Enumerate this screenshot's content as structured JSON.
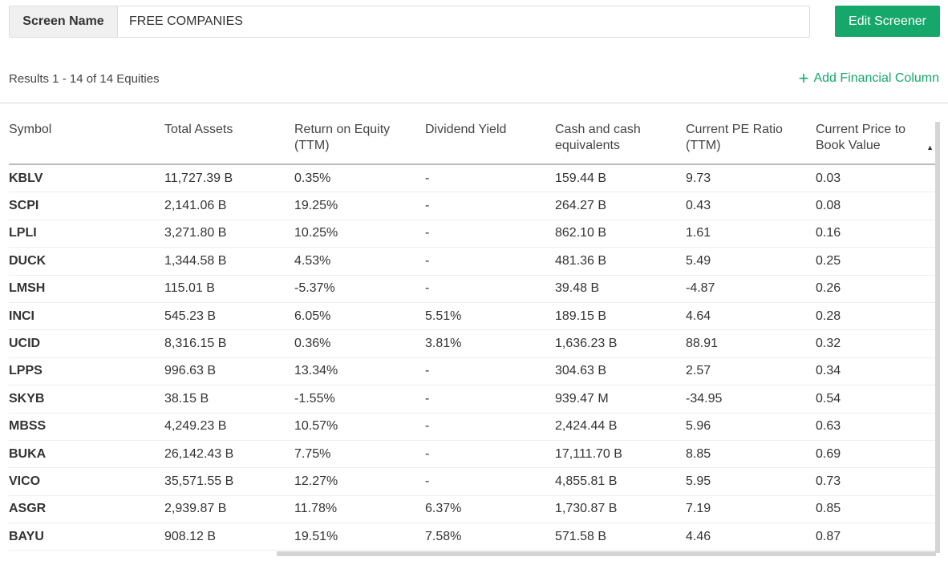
{
  "screen": {
    "label": "Screen Name",
    "value": "FREE COMPANIES",
    "edit_label": "Edit Screener"
  },
  "results_text": "Results 1 - 14 of 14 Equities",
  "add_column": {
    "icon": "plus-icon",
    "label": "Add Financial Column"
  },
  "columns": [
    "Symbol",
    "Total Assets",
    "Return on Equity (TTM)",
    "Dividend Yield",
    "Cash and cash equivalents",
    "Current PE Ratio (TTM)",
    "Current Price to Book Value"
  ],
  "sort": {
    "column": "Current Price to Book Value",
    "direction": "ascending"
  },
  "rows": [
    [
      "KBLV",
      "11,727.39 B",
      "0.35%",
      "-",
      "159.44 B",
      "9.73",
      "0.03"
    ],
    [
      "SCPI",
      "2,141.06 B",
      "19.25%",
      "-",
      "264.27 B",
      "0.43",
      "0.08"
    ],
    [
      "LPLI",
      "3,271.80 B",
      "10.25%",
      "-",
      "862.10 B",
      "1.61",
      "0.16"
    ],
    [
      "DUCK",
      "1,344.58 B",
      "4.53%",
      "-",
      "481.36 B",
      "5.49",
      "0.25"
    ],
    [
      "LMSH",
      "115.01 B",
      "-5.37%",
      "-",
      "39.48 B",
      "-4.87",
      "0.26"
    ],
    [
      "INCI",
      "545.23 B",
      "6.05%",
      "5.51%",
      "189.15 B",
      "4.64",
      "0.28"
    ],
    [
      "UCID",
      "8,316.15 B",
      "0.36%",
      "3.81%",
      "1,636.23 B",
      "88.91",
      "0.32"
    ],
    [
      "LPPS",
      "996.63 B",
      "13.34%",
      "-",
      "304.63 B",
      "2.57",
      "0.34"
    ],
    [
      "SKYB",
      "38.15 B",
      "-1.55%",
      "-",
      "939.47 M",
      "-34.95",
      "0.54"
    ],
    [
      "MBSS",
      "4,249.23 B",
      "10.57%",
      "-",
      "2,424.44 B",
      "5.96",
      "0.63"
    ],
    [
      "BUKA",
      "26,142.43 B",
      "7.75%",
      "-",
      "17,111.70 B",
      "8.85",
      "0.69"
    ],
    [
      "VICO",
      "35,571.55 B",
      "12.27%",
      "-",
      "4,855.81 B",
      "5.95",
      "0.73"
    ],
    [
      "ASGR",
      "2,939.87 B",
      "11.78%",
      "6.37%",
      "1,730.87 B",
      "7.19",
      "0.85"
    ],
    [
      "BAYU",
      "908.12 B",
      "19.51%",
      "7.58%",
      "571.58 B",
      "4.46",
      "0.87"
    ]
  ]
}
